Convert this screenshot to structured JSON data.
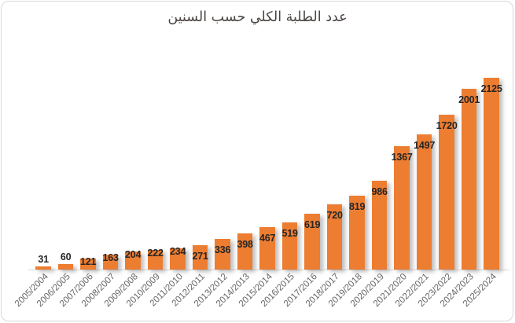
{
  "chart_data": {
    "type": "bar",
    "title": "عدد الطلبة الكلي حسب السنين",
    "categories": [
      "2005/2004",
      "2006/2005",
      "2007/2006",
      "2008/2007",
      "2009/2008",
      "2010/2009",
      "2011/2010",
      "2012/2011",
      "2013/2012",
      "2014/2013",
      "2015/2014",
      "2016/2015",
      "2017/2016",
      "2018/2017",
      "2019/2018",
      "2020/2019",
      "2021/2020",
      "2022/2021",
      "2023/2022",
      "2024/2023",
      "2025/2024"
    ],
    "values": [
      31,
      60,
      121,
      163,
      204,
      222,
      234,
      271,
      336,
      398,
      467,
      519,
      619,
      720,
      819,
      986,
      1367,
      1497,
      1720,
      2001,
      2125
    ],
    "xlabel": "",
    "ylabel": "",
    "ylim": [
      0,
      2125
    ],
    "grid": false,
    "legend": "none",
    "data_labels": "inside-end-bold",
    "x_tick_rotation": 45,
    "colors": {
      "bar": "#ED7D31",
      "value_label": "#262626",
      "axis_label": "#666666",
      "title": "#4a4542",
      "border": "#d9d9d9",
      "background": "#ffffff"
    }
  }
}
